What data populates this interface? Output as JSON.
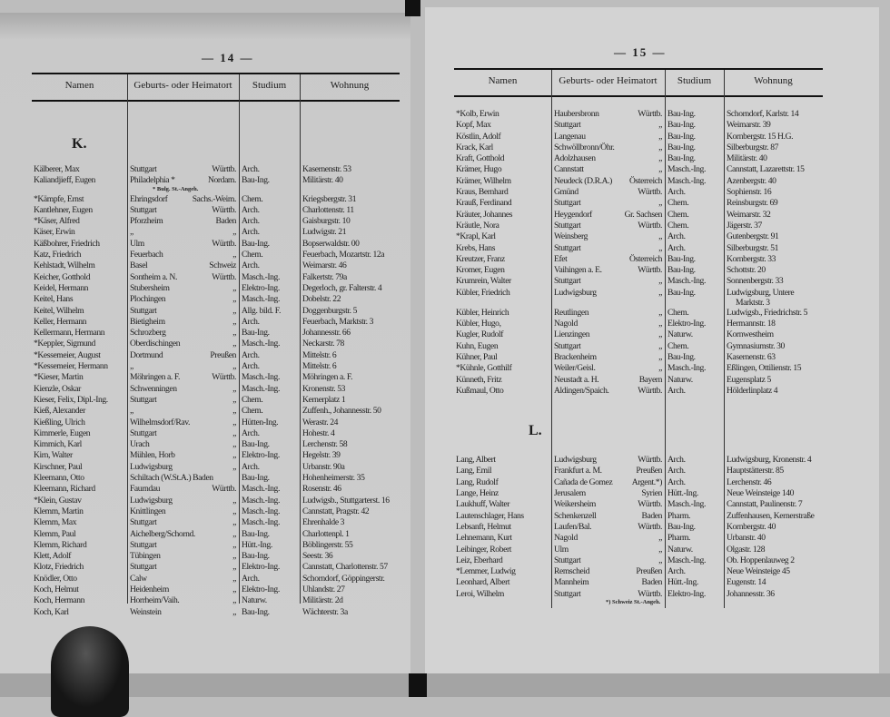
{
  "pages": [
    {
      "page_number": "— 14 —",
      "headers": {
        "name": "Namen",
        "place": "Geburts- oder Heimatort",
        "study": "Studium",
        "address": "Wohnung"
      },
      "entries": [
        {
          "type": "letter",
          "text": "K."
        },
        {
          "type": "row",
          "name": "Kälberer, Max",
          "place": "Stuttgart",
          "region": "Württb.",
          "study": "Arch.",
          "address": "Kasernenstr. 53"
        },
        {
          "type": "row",
          "name": "Kaliandjieff, Eugen",
          "place": "Philadelphia *",
          "region": "Nordam.",
          "study": "Bau-Ing.",
          "address": "Militärstr. 40"
        },
        {
          "type": "note",
          "text": "* Bulg. St.-Angeh."
        },
        {
          "type": "row",
          "name": "*Kämpfe, Ernst",
          "place": "Ehringsdorf",
          "region": "Sachs.-Weim.",
          "study": "Chem.",
          "address": "Kriegsbergstr. 31"
        },
        {
          "type": "row",
          "name": "Kantlehner, Eugen",
          "place": "Stuttgart",
          "region": "Württb.",
          "study": "Arch.",
          "address": "Charlottenstr. 11"
        },
        {
          "type": "row",
          "name": "*Käser, Alfred",
          "place": "Pforzheim",
          "region": "Baden",
          "study": "Arch.",
          "address": "Gaisburgstr. 10"
        },
        {
          "type": "row",
          "name": "Käser, Erwin",
          "place": "„",
          "region": "„",
          "study": "Arch.",
          "address": "Ludwigstr. 21"
        },
        {
          "type": "row",
          "name": "Käßbohrer, Friedrich",
          "place": "Ulm",
          "region": "Württb.",
          "study": "Bau-Ing.",
          "address": "Bopserwaldstr. 00"
        },
        {
          "type": "row",
          "name": "Katz, Friedrich",
          "place": "Feuerbach",
          "region": "„",
          "study": "Chem.",
          "address": "Feuerbach, Mozartstr. 12a"
        },
        {
          "type": "row",
          "name": "Kehlstadt, Wilhelm",
          "place": "Basel",
          "region": "Schweiz",
          "study": "Arch.",
          "address": "Weimarstr. 46"
        },
        {
          "type": "row",
          "name": "Keicher, Gotthold",
          "place": "Sontheim a. N.",
          "region": "Württb.",
          "study": "Masch.-Ing.",
          "address": "Falkertstr. 79a"
        },
        {
          "type": "row",
          "name": "Keidel, Hermann",
          "place": "Stubersheim",
          "region": "„",
          "study": "Elektro-Ing.",
          "address": "Degerloch, gr. Falterstr. 4"
        },
        {
          "type": "row",
          "name": "Keitel, Hans",
          "place": "Plochingen",
          "region": "„",
          "study": "Masch.-Ing.",
          "address": "Dobelstr. 22"
        },
        {
          "type": "row",
          "name": "Keitel, Wilhelm",
          "place": "Stuttgart",
          "region": "„",
          "study": "Allg. bild. F.",
          "address": "Doggenburgstr. 5"
        },
        {
          "type": "row",
          "name": "Keller, Hermann",
          "place": "Bietigheim",
          "region": "„",
          "study": "Arch.",
          "address": "Feuerbach, Marktstr. 3"
        },
        {
          "type": "row",
          "name": "Kellermann, Hermann",
          "place": "Schrozberg",
          "region": "„",
          "study": "Bau-Ing.",
          "address": "Johannesstr. 66"
        },
        {
          "type": "row",
          "name": "*Keppler, Sigmund",
          "place": "Oberdischingen",
          "region": "„",
          "study": "Masch.-Ing.",
          "address": "Neckarstr. 78"
        },
        {
          "type": "row",
          "name": "*Kessemeier, August",
          "place": "Dortmund",
          "region": "Preußen",
          "study": "Arch.",
          "address": "Mittelstr. 6"
        },
        {
          "type": "row",
          "name": "*Kessemeier, Hermann",
          "place": "„",
          "region": "„",
          "study": "Arch.",
          "address": "Mittelstr. 6"
        },
        {
          "type": "row",
          "name": "*Kieser, Martin",
          "place": "Möhringen a. F.",
          "region": "Württb.",
          "study": "Masch.-Ing.",
          "address": "Möhringen a. F."
        },
        {
          "type": "row",
          "name": "Kienzle, Oskar",
          "place": "Schwenningen",
          "region": "„",
          "study": "Masch.-Ing.",
          "address": "Kronenstr. 53"
        },
        {
          "type": "row",
          "name": "Kieser, Felix, Dipl.-Ing.",
          "place": "Stuttgart",
          "region": "„",
          "study": "Chem.",
          "address": "Kernerplatz 1"
        },
        {
          "type": "row",
          "name": "Kieß, Alexander",
          "place": "„",
          "region": "„",
          "study": "Chem.",
          "address": "Zuffenh., Johannesstr. 50"
        },
        {
          "type": "row",
          "name": "Kießling, Ulrich",
          "place": "Wilhelmsdorf/Rav.",
          "region": "„",
          "study": "Hütten-Ing.",
          "address": "Werastr. 24"
        },
        {
          "type": "row",
          "name": "Kimmerle, Eugen",
          "place": "Stuttgart",
          "region": "„",
          "study": "Arch.",
          "address": "Hohestr. 4"
        },
        {
          "type": "row",
          "name": "Kimmich, Karl",
          "place": "Urach",
          "region": "„",
          "study": "Bau-Ing.",
          "address": "Lerchenstr. 58"
        },
        {
          "type": "row",
          "name": "Kirn, Walter",
          "place": "Mühlen, Horb",
          "region": "„",
          "study": "Elektro-Ing.",
          "address": "Hegelstr. 39"
        },
        {
          "type": "row",
          "name": "Kirschner, Paul",
          "place": "Ludwigsburg",
          "region": "„",
          "study": "Arch.",
          "address": "Urbanstr. 90a"
        },
        {
          "type": "row",
          "name": "Kleemann, Otto",
          "place": "Schiltach (W.St.A.) Baden",
          "region": "",
          "study": "Bau-Ing.",
          "address": "Hohenheimerstr. 35"
        },
        {
          "type": "row",
          "name": "Kleemann, Richard",
          "place": "Faurndau",
          "region": "Württb.",
          "study": "Masch.-Ing.",
          "address": "Rosenstr. 46"
        },
        {
          "type": "row",
          "name": "*Klein, Gustav",
          "place": "Ludwigsburg",
          "region": "„",
          "study": "Masch.-Ing.",
          "address": "Ludwigsb., Stuttgarterst. 16"
        },
        {
          "type": "row",
          "name": "Klemm, Martin",
          "place": "Knittlingen",
          "region": "„",
          "study": "Masch.-Ing.",
          "address": "Cannstatt, Pragstr. 42"
        },
        {
          "type": "row",
          "name": "Klemm, Max",
          "place": "Stuttgart",
          "region": "„",
          "study": "Masch.-Ing.",
          "address": "Ehrenhalde 3"
        },
        {
          "type": "row",
          "name": "Klemm, Paul",
          "place": "Aichelberg/Schornd.",
          "region": "„",
          "study": "Bau-Ing.",
          "address": "Charlottenpl. 1"
        },
        {
          "type": "row",
          "name": "Klemm, Richard",
          "place": "Stuttgart",
          "region": "„",
          "study": "Hütt.-Ing.",
          "address": "Böblingerstr. 55"
        },
        {
          "type": "row",
          "name": "Klett, Adolf",
          "place": "Tübingen",
          "region": "„",
          "study": "Bau-Ing.",
          "address": "Seestr. 36"
        },
        {
          "type": "row",
          "name": "Klotz, Friedrich",
          "place": "Stuttgart",
          "region": "„",
          "study": "Elektro-Ing.",
          "address": "Cannstatt, Charlottenstr. 57"
        },
        {
          "type": "row",
          "name": "Knödler, Otto",
          "place": "Calw",
          "region": "„",
          "study": "Arch.",
          "address": "Schorndorf, Göppingerstr."
        },
        {
          "type": "row",
          "name": "Koch, Helmut",
          "place": "Heidenheim",
          "region": "„",
          "study": "Elektro-Ing.",
          "address": "Uhlandstr. 27"
        },
        {
          "type": "row",
          "name": "Koch, Hermann",
          "place": "Horrheim/Vaih.",
          "region": "„",
          "study": "Naturw.",
          "address": "Militärstr. 2d"
        },
        {
          "type": "row",
          "name": "Koch, Karl",
          "place": "Weinstein",
          "region": "„",
          "study": "Bau-Ing.",
          "address": "Wächterstr. 3a"
        }
      ]
    },
    {
      "page_number": "— 15 —",
      "headers": {
        "name": "Namen",
        "place": "Geburts- oder Heimatort",
        "study": "Studium",
        "address": "Wohnung"
      },
      "entries": [
        {
          "type": "row",
          "name": "*Kolb, Erwin",
          "place": "Haubersbronn",
          "region": "Württb.",
          "study": "Bau-Ing.",
          "address": "Schorndorf, Karlstr. 14"
        },
        {
          "type": "row",
          "name": "Kopf, Max",
          "place": "Stuttgart",
          "region": "„",
          "study": "Bau-Ing.",
          "address": "Weimarstr. 39"
        },
        {
          "type": "row",
          "name": "Köstlin, Adolf",
          "place": "Langenau",
          "region": "„",
          "study": "Bau-Ing.",
          "address": "Kornbergstr. 15 H.G."
        },
        {
          "type": "row",
          "name": "Krack, Karl",
          "place": "Schwöllbronn/Öhr.",
          "region": "„",
          "study": "Bau-Ing.",
          "address": "Silberburgstr. 87"
        },
        {
          "type": "row",
          "name": "Kraft, Gotthold",
          "place": "Adolzhausen",
          "region": "„",
          "study": "Bau-Ing.",
          "address": "Militärstr. 40"
        },
        {
          "type": "row",
          "name": "Krämer, Hugo",
          "place": "Cannstatt",
          "region": "„",
          "study": "Masch.-Ing.",
          "address": "Cannstatt, Lazarettstr. 15"
        },
        {
          "type": "row",
          "name": "Krämer, Wilhelm",
          "place": "Neudeck (D.R.A.)",
          "region": "Österreich",
          "study": "Masch.-Ing.",
          "address": "Azenbergstr. 40"
        },
        {
          "type": "row",
          "name": "Kraus, Bernhard",
          "place": "Gmünd",
          "region": "Württb.",
          "study": "Arch.",
          "address": "Sophienstr. 16"
        },
        {
          "type": "row",
          "name": "Krauß, Ferdinand",
          "place": "Stuttgart",
          "region": "„",
          "study": "Chem.",
          "address": "Reinsburgstr. 69"
        },
        {
          "type": "row",
          "name": "Kräuter, Johannes",
          "place": "Heygendorf",
          "region": "Gr. Sachsen",
          "study": "Chem.",
          "address": "Weimarstr. 32"
        },
        {
          "type": "row",
          "name": "Kräutle, Nora",
          "place": "Stuttgart",
          "region": "Württb.",
          "study": "Chem.",
          "address": "Jägerstr. 37"
        },
        {
          "type": "row",
          "name": "*Krapl, Karl",
          "place": "Weinsberg",
          "region": "„",
          "study": "Arch.",
          "address": "Gutenbergstr. 91"
        },
        {
          "type": "row",
          "name": "Krebs, Hans",
          "place": "Stuttgart",
          "region": "„",
          "study": "Arch.",
          "address": "Silberburgstr. 51"
        },
        {
          "type": "row",
          "name": "Kreutzer, Franz",
          "place": "Efet",
          "region": "Österreich",
          "study": "Bau-Ing.",
          "address": "Kornbergstr. 33"
        },
        {
          "type": "row",
          "name": "Kromer, Eugen",
          "place": "Vaihingen a. E.",
          "region": "Württb.",
          "study": "Bau-Ing.",
          "address": "Schottstr. 20"
        },
        {
          "type": "row",
          "name": "Krumrein, Walter",
          "place": "Stuttgart",
          "region": "„",
          "study": "Masch.-Ing.",
          "address": "Sonnenbergstr. 33"
        },
        {
          "type": "row",
          "name": "Kübler, Friedrich",
          "place": "Ludwigsburg",
          "region": "„",
          "study": "Bau-Ing.",
          "address": "Ludwigsburg, Untere",
          "address_cont": "Marktstr. 3"
        },
        {
          "type": "row",
          "name": "Kübler, Heinrich",
          "place": "Reutlingen",
          "region": "„",
          "study": "Chem.",
          "address": "Ludwigsb., Friedrichstr. 5"
        },
        {
          "type": "row",
          "name": "Kübler, Hugo,",
          "place": "Nagold",
          "region": "„",
          "study": "Elektro-Ing.",
          "address": "Hermannstr. 18"
        },
        {
          "type": "row",
          "name": "Kugler, Rudolf",
          "place": "Lienzingen",
          "region": "„",
          "study": "Naturw.",
          "address": "Kornwestheim"
        },
        {
          "type": "row",
          "name": "Kuhn, Eugen",
          "place": "Stuttgart",
          "region": "„",
          "study": "Chem.",
          "address": "Gymnasiumstr. 30"
        },
        {
          "type": "row",
          "name": "Kühner, Paul",
          "place": "Brackenheim",
          "region": "„",
          "study": "Bau-Ing.",
          "address": "Kasernenstr. 63"
        },
        {
          "type": "row",
          "name": "*Kühnle, Gotthilf",
          "place": "Weiler/Geisl.",
          "region": "„",
          "study": "Masch.-Ing.",
          "address": "Eßlingen, Ottilienstr. 15"
        },
        {
          "type": "row",
          "name": "Künneth, Fritz",
          "place": "Neustadt a. H.",
          "region": "Bayern",
          "study": "Naturw.",
          "address": "Eugensplatz 5"
        },
        {
          "type": "row",
          "name": "Kußmaul, Otto",
          "place": "Aldingen/Spaich.",
          "region": "Württb.",
          "study": "Arch.",
          "address": "Hölderlinplatz 4"
        },
        {
          "type": "letter",
          "text": "L."
        },
        {
          "type": "row",
          "name": "Lang, Albert",
          "place": "Ludwigsburg",
          "region": "Württb.",
          "study": "Arch.",
          "address": "Ludwigsburg, Kronenstr. 4"
        },
        {
          "type": "row",
          "name": "Lang, Emil",
          "place": "Frankfurt a. M.",
          "region": "Preußen",
          "study": "Arch.",
          "address": "Hauptstätterstr. 85"
        },
        {
          "type": "row",
          "name": "Lang, Rudolf",
          "place": "Cañada de Gomez",
          "region": "Argent.*)",
          "study": "Arch.",
          "address": "Lerchenstr. 46"
        },
        {
          "type": "row",
          "name": "Lange, Heinz",
          "place": "Jerusalem",
          "region": "Syrien",
          "study": "Hütt.-Ing.",
          "address": "Neue Weinsteige 140"
        },
        {
          "type": "row",
          "name": "Laukhuff, Walter",
          "place": "Weikersheim",
          "region": "Württb.",
          "study": "Masch.-Ing.",
          "address": "Cannstatt, Paulinenstr. 7"
        },
        {
          "type": "row",
          "name": "Lautenschlager, Hans",
          "place": "Schenkenzell",
          "region": "Baden",
          "study": "Pharm.",
          "address": "Zuffenhausen, Kernerstraße"
        },
        {
          "type": "row",
          "name": "Lebsanft, Helmut",
          "place": "Laufen/Bal.",
          "region": "Württb.",
          "study": "Bau-Ing.",
          "address": "Kornbergstr. 40"
        },
        {
          "type": "row",
          "name": "Lehnemann, Kurt",
          "place": "Nagold",
          "region": "„",
          "study": "Pharm.",
          "address": "Urbanstr. 40"
        },
        {
          "type": "row",
          "name": "Leibinger, Robert",
          "place": "Ulm",
          "region": "„",
          "study": "Naturw.",
          "address": "Olgastr. 128"
        },
        {
          "type": "row",
          "name": "Leiz, Eberhard",
          "place": "Stuttgart",
          "region": "„",
          "study": "Masch.-Ing.",
          "address": "Ob. Hoppenlauweg 2"
        },
        {
          "type": "row",
          "name": "*Lemmer, Ludwig",
          "place": "Remscheid",
          "region": "Preußen",
          "study": "Arch.",
          "address": "Neue Weinsteige 45"
        },
        {
          "type": "row",
          "name": "Leonhard, Albert",
          "place": "Mannheim",
          "region": "Baden",
          "study": "Hütt.-Ing.",
          "address": "Eugenstr. 14"
        },
        {
          "type": "row",
          "name": "Leroi, Wilhelm",
          "place": "Stuttgart",
          "region": "Württb.",
          "study": "Elektro-Ing.",
          "address": "Johannesstr. 36"
        },
        {
          "type": "note",
          "text": "*) Schweiz St.-Angeh."
        }
      ]
    }
  ]
}
